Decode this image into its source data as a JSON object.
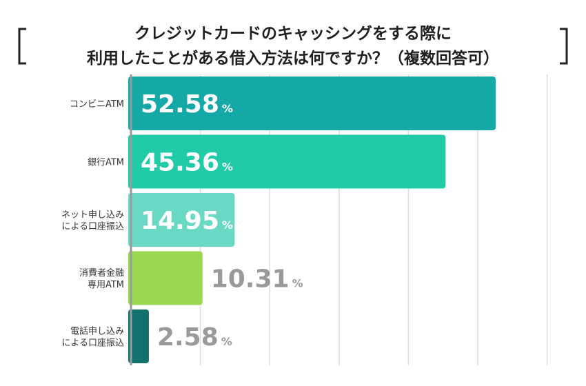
{
  "chart_data": {
    "type": "bar",
    "orientation": "horizontal",
    "title": [
      "クレジットカードのキャッシングをする際に",
      "利用したことがある借入方法は何ですか？（複数回答可）"
    ],
    "categories": [
      [
        "コンビニATM"
      ],
      [
        "銀行ATM"
      ],
      [
        "ネット申し込み",
        "による口座振込"
      ],
      [
        "消費者金融",
        "専用ATM"
      ],
      [
        "電話申し込み",
        "による口座振込"
      ]
    ],
    "values": [
      52.58,
      45.36,
      14.95,
      10.31,
      2.58
    ],
    "value_labels": [
      "52.58",
      "45.36",
      "14.95",
      "10.31",
      "2.58"
    ],
    "unit": "%",
    "xlim": [
      0,
      60
    ],
    "grid": true,
    "colors": [
      "#14a8a6",
      "#22cba8",
      "#6ad9c4",
      "#9bd851",
      "#12716c"
    ],
    "label_color_inside": "#ffffff",
    "label_color_outside": "#9a9a9a"
  }
}
